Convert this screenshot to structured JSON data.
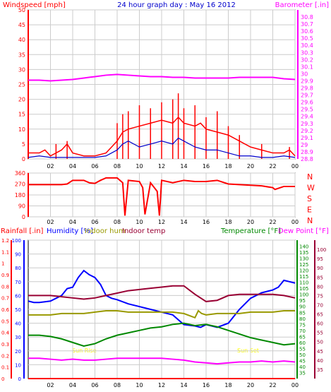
{
  "header": {
    "left_label": "Windspeed [mph]",
    "center_title": "24 hour graph day : May 16 2012",
    "right_label": "Barometer [.in]"
  },
  "wind_dir_labels": [
    "N",
    "W",
    "S",
    "E",
    "N"
  ],
  "bottom_header": {
    "rainfall": "Rainfall [.in]",
    "humidity": "Humidity [%]",
    "indoor_hum": "Indoor hum",
    "indoor_temp": "Indoor temp",
    "temperature": "Temperature [°F]",
    "dew_point": "Dew Point [°F]"
  },
  "annotations": {
    "sunrise": "Sun Rise",
    "sunset": "Sun Set"
  },
  "colors": {
    "wind": "#ff0000",
    "gust": "#0000cc",
    "barometer": "#ff00ff",
    "winddir": "#ff0000",
    "rain": "#ff0000",
    "humidity": "#0000ff",
    "indoor_hum": "#999900",
    "indoor_temp": "#990033",
    "temperature": "#008800",
    "dew_point": "#ff00ff",
    "grid": "#cccccc",
    "title": "#0000cc",
    "sun": "#ffff00"
  },
  "chart_data": [
    {
      "type": "line",
      "title": "24 hour graph day : May 16 2012",
      "x_ticks": [
        "02",
        "04",
        "06",
        "08",
        "10",
        "12",
        "14",
        "16",
        "18",
        "20",
        "22",
        "00"
      ],
      "xlim": [
        0,
        24
      ],
      "ylabel_left": "Windspeed [mph]",
      "ylim_left": [
        0,
        50
      ],
      "yticks_left": [
        "0",
        "5",
        "10",
        "15",
        "20",
        "25",
        "30",
        "35",
        "40",
        "45",
        "50"
      ],
      "ylabel_right": "Barometer [.in]",
      "ylim_right": [
        28.8,
        30.9
      ],
      "yticks_right": [
        "28.8",
        "28.9",
        "29",
        "29.1",
        "29.2",
        "29.3",
        "29.4",
        "29.5",
        "29.6",
        "29.7",
        "29.8",
        "29.9",
        "30",
        "30.1",
        "30.2",
        "30.3",
        "30.4",
        "30.5",
        "30.6",
        "30.7",
        "30.8"
      ],
      "series": [
        {
          "name": "Windspeed [mph]",
          "axis": "left",
          "x": [
            0,
            1,
            1.5,
            2,
            3,
            3.5,
            4,
            5,
            6,
            7,
            7.5,
            8,
            8.5,
            9,
            10,
            11,
            12,
            13,
            13.5,
            14,
            15,
            15.5,
            16,
            17,
            18,
            18.5,
            19,
            20,
            21,
            22,
            23,
            23.5,
            24
          ],
          "y": [
            2,
            2,
            3,
            1,
            3,
            5,
            2,
            1,
            1,
            2,
            4,
            6,
            9,
            10,
            11,
            12,
            13,
            12,
            14,
            12,
            11,
            12,
            10,
            9,
            8,
            7,
            6,
            4,
            3,
            2,
            2,
            3,
            1
          ]
        },
        {
          "name": "Windspeed [mph] (gust peaks)",
          "axis": "left",
          "x": [
            2.5,
            3.5,
            8,
            8.5,
            9,
            10,
            11,
            12,
            13,
            13.5,
            14,
            15,
            16,
            17,
            18,
            19,
            21,
            23.5
          ],
          "y": [
            5,
            6,
            12,
            15,
            16,
            18,
            17,
            19,
            20,
            22,
            17,
            18,
            14,
            16,
            11,
            8,
            5,
            4
          ]
        },
        {
          "name": "Windspeed [mph] (average)",
          "axis": "left",
          "x": [
            0,
            1,
            2,
            3,
            4,
            5,
            6,
            7,
            7.5,
            8,
            8.5,
            9,
            10,
            11,
            12,
            13,
            13.5,
            14,
            15,
            16,
            17,
            18,
            19,
            20,
            21,
            22,
            23,
            24
          ],
          "y": [
            0.5,
            1,
            0.5,
            0.5,
            0.5,
            0.5,
            0.5,
            1,
            2,
            3,
            5,
            6,
            4,
            5,
            6,
            5,
            7,
            6,
            4,
            3,
            3,
            2,
            1,
            1,
            0.5,
            0.5,
            1,
            0.5
          ]
        },
        {
          "name": "Barometer [.in]",
          "axis": "right",
          "x": [
            0,
            1,
            2,
            3,
            4,
            5,
            6,
            7,
            8,
            9,
            10,
            11,
            12,
            13,
            14,
            15,
            16,
            17,
            18,
            19,
            20,
            21,
            22,
            23,
            24
          ],
          "y": [
            29.91,
            29.91,
            29.9,
            29.91,
            29.92,
            29.94,
            29.96,
            29.98,
            29.99,
            29.98,
            29.97,
            29.96,
            29.96,
            29.95,
            29.95,
            29.94,
            29.94,
            29.94,
            29.94,
            29.95,
            29.95,
            29.95,
            29.95,
            29.93,
            29.92
          ]
        }
      ]
    },
    {
      "type": "line",
      "x_ticks": [
        "02",
        "04",
        "06",
        "08",
        "10",
        "12",
        "14",
        "16",
        "18",
        "20",
        "22",
        "00"
      ],
      "xlim": [
        0,
        24
      ],
      "ylim": [
        0,
        360
      ],
      "yticks": [
        "0",
        "90",
        "180",
        "270",
        "360"
      ],
      "right_labels": [
        "N",
        "W",
        "S",
        "E",
        "N"
      ],
      "series": [
        {
          "name": "Wind direction",
          "x": [
            0,
            1,
            2,
            3,
            3.5,
            4,
            5,
            5.5,
            6,
            6.5,
            7,
            8,
            8.5,
            8.7,
            9,
            10,
            10.3,
            10.5,
            11,
            11.6,
            11.8,
            12,
            13,
            14,
            15,
            16,
            17,
            18,
            19,
            20,
            21,
            22,
            22.2,
            23,
            24
          ],
          "y": [
            265,
            265,
            265,
            265,
            270,
            300,
            300,
            280,
            275,
            300,
            320,
            320,
            280,
            10,
            300,
            290,
            240,
            20,
            280,
            210,
            10,
            300,
            280,
            300,
            290,
            290,
            300,
            270,
            265,
            260,
            255,
            240,
            225,
            250,
            250
          ]
        }
      ]
    },
    {
      "type": "line",
      "x_ticks": [
        "02",
        "04",
        "06",
        "08",
        "10",
        "12",
        "14",
        "16",
        "18",
        "20",
        "22",
        "00"
      ],
      "xlim": [
        0,
        24
      ],
      "ylabel_left_outer": "Rainfall [.in]",
      "ylim_left_outer": [
        0,
        1.2
      ],
      "yticks_left_outer": [
        "0",
        "0.1",
        "0.2",
        "0.3",
        "0.4",
        "0.5",
        "0.6",
        "0.7",
        "0.8",
        "0.9",
        "1",
        "1.1",
        "1.2"
      ],
      "ylabel_left_inner": "Humidity [%]",
      "ylim_left_inner": [
        0,
        100
      ],
      "yticks_left_inner": [
        "0",
        "10",
        "20",
        "30",
        "40",
        "50",
        "60",
        "70",
        "80",
        "90",
        "100"
      ],
      "ylabel_right_inner": "Temperature [°F]",
      "ylim_right_inner": [
        30,
        145
      ],
      "yticks_right_inner": [
        "35",
        "40",
        "45",
        "50",
        "55",
        "60",
        "65",
        "70",
        "75",
        "80",
        "85",
        "90",
        "95",
        "100",
        "105",
        "110",
        "115",
        "120",
        "125",
        "130",
        "135",
        "140"
      ],
      "ylabel_right_outer": "Dew Point [°F]",
      "ylim_right_outer": [
        30,
        105
      ],
      "yticks_right_outer": [
        "35",
        "40",
        "45",
        "50",
        "55",
        "60",
        "65",
        "70",
        "75",
        "80",
        "85",
        "90",
        "95",
        "100"
      ],
      "series": [
        {
          "name": "Rainfall [.in]",
          "axis": "rain",
          "x": [
            0,
            24
          ],
          "y": [
            0,
            0
          ]
        },
        {
          "name": "Humidity [%]",
          "axis": "humidity",
          "x": [
            0,
            0.5,
            1,
            2,
            3,
            3.5,
            4,
            4.5,
            5,
            5.5,
            6,
            6.5,
            7,
            7.5,
            8,
            9,
            10,
            11,
            12,
            13,
            14,
            15,
            15.5,
            16,
            16.5,
            17,
            18,
            19,
            20,
            21,
            22,
            22.5,
            23,
            23.5,
            24
          ],
          "y": [
            56,
            55,
            55,
            56,
            60,
            65,
            66,
            73,
            78,
            75,
            73,
            68,
            60,
            58,
            57,
            54,
            52,
            50,
            48,
            46,
            39,
            38,
            37,
            39,
            38,
            37,
            40,
            50,
            58,
            62,
            64,
            66,
            71,
            70,
            69
          ]
        },
        {
          "name": "Indoor hum",
          "axis": "humidity",
          "x": [
            0,
            1,
            2,
            3,
            4,
            5,
            6,
            7,
            8,
            9,
            10,
            11,
            12,
            13,
            14,
            15,
            15.3,
            15.6,
            16,
            17,
            18,
            19,
            20,
            21,
            22,
            23,
            24
          ],
          "y": [
            46,
            46,
            46,
            47,
            47,
            47,
            48,
            49,
            49,
            48,
            48,
            48,
            48,
            48,
            47,
            44,
            49,
            47,
            46,
            47,
            47,
            47,
            48,
            48,
            48,
            49,
            49
          ]
        },
        {
          "name": "Indoor temp",
          "axis": "temperature",
          "x": [
            0,
            1,
            2,
            3,
            4,
            5,
            6,
            7,
            8,
            9,
            10,
            11,
            12,
            13,
            14,
            15,
            16,
            17,
            18,
            19,
            20,
            21,
            22,
            23,
            24
          ],
          "y": [
            99,
            99,
            99,
            98,
            97,
            96,
            97,
            99,
            101,
            103,
            104,
            105,
            106,
            107,
            107,
            100,
            94,
            95,
            99,
            100,
            100,
            100,
            100,
            99,
            97
          ]
        },
        {
          "name": "Temperature [°F]",
          "axis": "temperature",
          "x": [
            0,
            1,
            2,
            3,
            4,
            5,
            6,
            7,
            8,
            9,
            10,
            11,
            12,
            13,
            14,
            15,
            16,
            17,
            18,
            19,
            20,
            21,
            22,
            23,
            24
          ],
          "y": [
            66,
            66,
            65,
            63,
            60,
            57,
            59,
            63,
            66,
            68,
            70,
            72,
            73,
            75,
            76,
            74,
            75,
            73,
            70,
            67,
            64,
            62,
            60,
            58,
            59
          ]
        },
        {
          "name": "Dew Point [°F]",
          "axis": "dew",
          "x": [
            0,
            1,
            2,
            3,
            4,
            5,
            6,
            7,
            8,
            9,
            10,
            11,
            12,
            13,
            14,
            15,
            16,
            17,
            18,
            19,
            20,
            21,
            22,
            23,
            24
          ],
          "y": [
            41,
            41,
            40.5,
            40,
            40.5,
            40,
            40,
            40.5,
            41,
            41,
            41,
            41,
            41,
            40.5,
            40,
            39,
            38.5,
            38,
            38.5,
            39,
            39,
            39.5,
            39,
            39.5,
            39
          ]
        }
      ]
    }
  ]
}
